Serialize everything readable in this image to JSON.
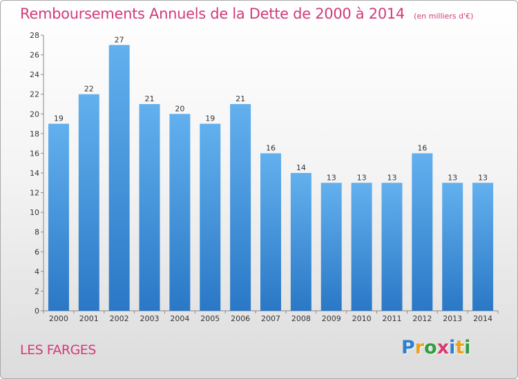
{
  "chart_data": {
    "type": "bar",
    "title": "Remboursements Annuels de la Dette de 2000 à 2014",
    "unit": "(en milliers d'€)",
    "categories": [
      "2000",
      "2001",
      "2002",
      "2003",
      "2004",
      "2005",
      "2006",
      "2007",
      "2008",
      "2009",
      "2010",
      "2011",
      "2012",
      "2013",
      "2014"
    ],
    "values": [
      19,
      22,
      27,
      21,
      20,
      19,
      21,
      16,
      14,
      13,
      13,
      13,
      16,
      13,
      13
    ],
    "ylim": [
      0,
      28
    ],
    "yticks": [
      0,
      2,
      4,
      6,
      8,
      10,
      12,
      14,
      16,
      18,
      20,
      22,
      24,
      26,
      28
    ],
    "grid": false,
    "bar_color": "#3f91d8"
  },
  "footer": {
    "commune": "LES FARGES",
    "logo": [
      "P",
      "r",
      "o",
      "x",
      "i",
      "t",
      "i"
    ],
    "logo_colors": [
      "#2f7fcf",
      "#e8a21c",
      "#2f9e3f",
      "#d83a6e",
      "#2f7fcf",
      "#e8a21c",
      "#2f9e3f"
    ]
  }
}
